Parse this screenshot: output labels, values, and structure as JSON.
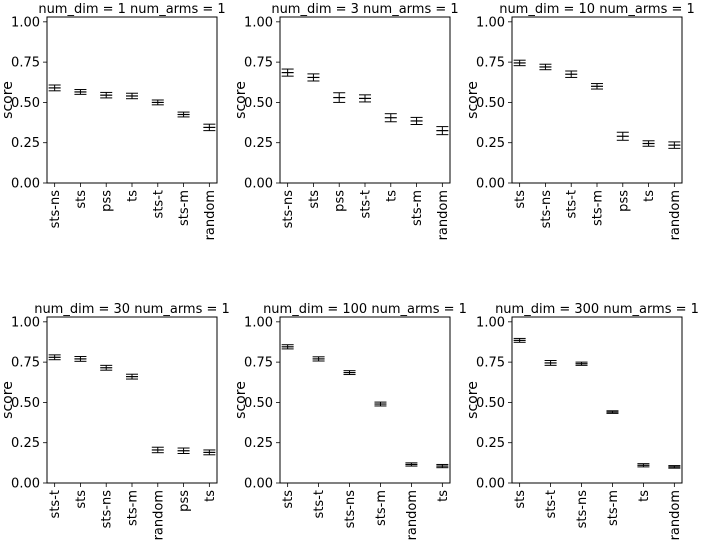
{
  "chart_data": [
    {
      "type": "errorbar",
      "title": "num_dim = 1  num_arms = 1",
      "xlabel": "",
      "ylabel": "score",
      "ylim": [
        0,
        1.03
      ],
      "yticks": [
        "0.00",
        "0.25",
        "0.50",
        "0.75",
        "1.00"
      ],
      "categories": [
        "sts-ns",
        "sts",
        "pss",
        "ts",
        "sts-t",
        "sts-m",
        "random"
      ],
      "values": [
        0.59,
        0.565,
        0.545,
        0.54,
        0.5,
        0.425,
        0.345
      ],
      "error": [
        0.018,
        0.015,
        0.017,
        0.017,
        0.015,
        0.015,
        0.02
      ]
    },
    {
      "type": "errorbar",
      "title": "num_dim = 3  num_arms = 1",
      "xlabel": "",
      "ylabel": "score",
      "ylim": [
        0,
        1.03
      ],
      "yticks": [
        "0.00",
        "0.25",
        "0.50",
        "0.75",
        "1.00"
      ],
      "categories": [
        "sts-ns",
        "sts",
        "pss",
        "sts-t",
        "ts",
        "sts-m",
        "random"
      ],
      "values": [
        0.685,
        0.655,
        0.53,
        0.525,
        0.405,
        0.385,
        0.325
      ],
      "error": [
        0.022,
        0.022,
        0.03,
        0.022,
        0.025,
        0.022,
        0.025
      ]
    },
    {
      "type": "errorbar",
      "title": "num_dim = 10  num_arms = 1",
      "xlabel": "",
      "ylabel": "score",
      "ylim": [
        0,
        1.03
      ],
      "yticks": [
        "0.00",
        "0.25",
        "0.50",
        "0.75",
        "1.00"
      ],
      "categories": [
        "sts",
        "sts-ns",
        "sts-t",
        "sts-m",
        "pss",
        "ts",
        "random"
      ],
      "values": [
        0.745,
        0.72,
        0.675,
        0.6,
        0.29,
        0.245,
        0.235
      ],
      "error": [
        0.017,
        0.017,
        0.02,
        0.017,
        0.025,
        0.017,
        0.02
      ]
    },
    {
      "type": "errorbar",
      "title": "num_dim = 30  num_arms = 1",
      "xlabel": "",
      "ylabel": "score",
      "ylim": [
        0,
        1.03
      ],
      "yticks": [
        "0.00",
        "0.25",
        "0.50",
        "0.75",
        "1.00"
      ],
      "categories": [
        "sts-t",
        "sts",
        "sts-ns",
        "sts-m",
        "random",
        "pss",
        "ts"
      ],
      "values": [
        0.78,
        0.77,
        0.715,
        0.66,
        0.205,
        0.2,
        0.19
      ],
      "error": [
        0.015,
        0.015,
        0.015,
        0.015,
        0.017,
        0.017,
        0.015
      ]
    },
    {
      "type": "errorbar",
      "title": "num_dim = 100  num_arms = 1",
      "xlabel": "",
      "ylabel": "score",
      "ylim": [
        0,
        1.03
      ],
      "yticks": [
        "0.00",
        "0.25",
        "0.50",
        "0.75",
        "1.00"
      ],
      "categories": [
        "sts",
        "sts-t",
        "sts-ns",
        "sts-m",
        "random",
        "ts"
      ],
      "values": [
        0.845,
        0.77,
        0.685,
        0.49,
        0.115,
        0.105
      ],
      "error": [
        0.013,
        0.013,
        0.012,
        0.012,
        0.01,
        0.01
      ]
    },
    {
      "type": "errorbar",
      "title": "num_dim = 300  num_arms = 1",
      "xlabel": "",
      "ylabel": "score",
      "ylim": [
        0,
        1.03
      ],
      "yticks": [
        "0.00",
        "0.25",
        "0.50",
        "0.75",
        "1.00"
      ],
      "categories": [
        "sts",
        "sts-t",
        "sts-ns",
        "sts-m",
        "ts",
        "random"
      ],
      "values": [
        0.885,
        0.745,
        0.74,
        0.44,
        0.11,
        0.1
      ],
      "error": [
        0.012,
        0.015,
        0.01,
        0.008,
        0.01,
        0.008
      ]
    }
  ]
}
